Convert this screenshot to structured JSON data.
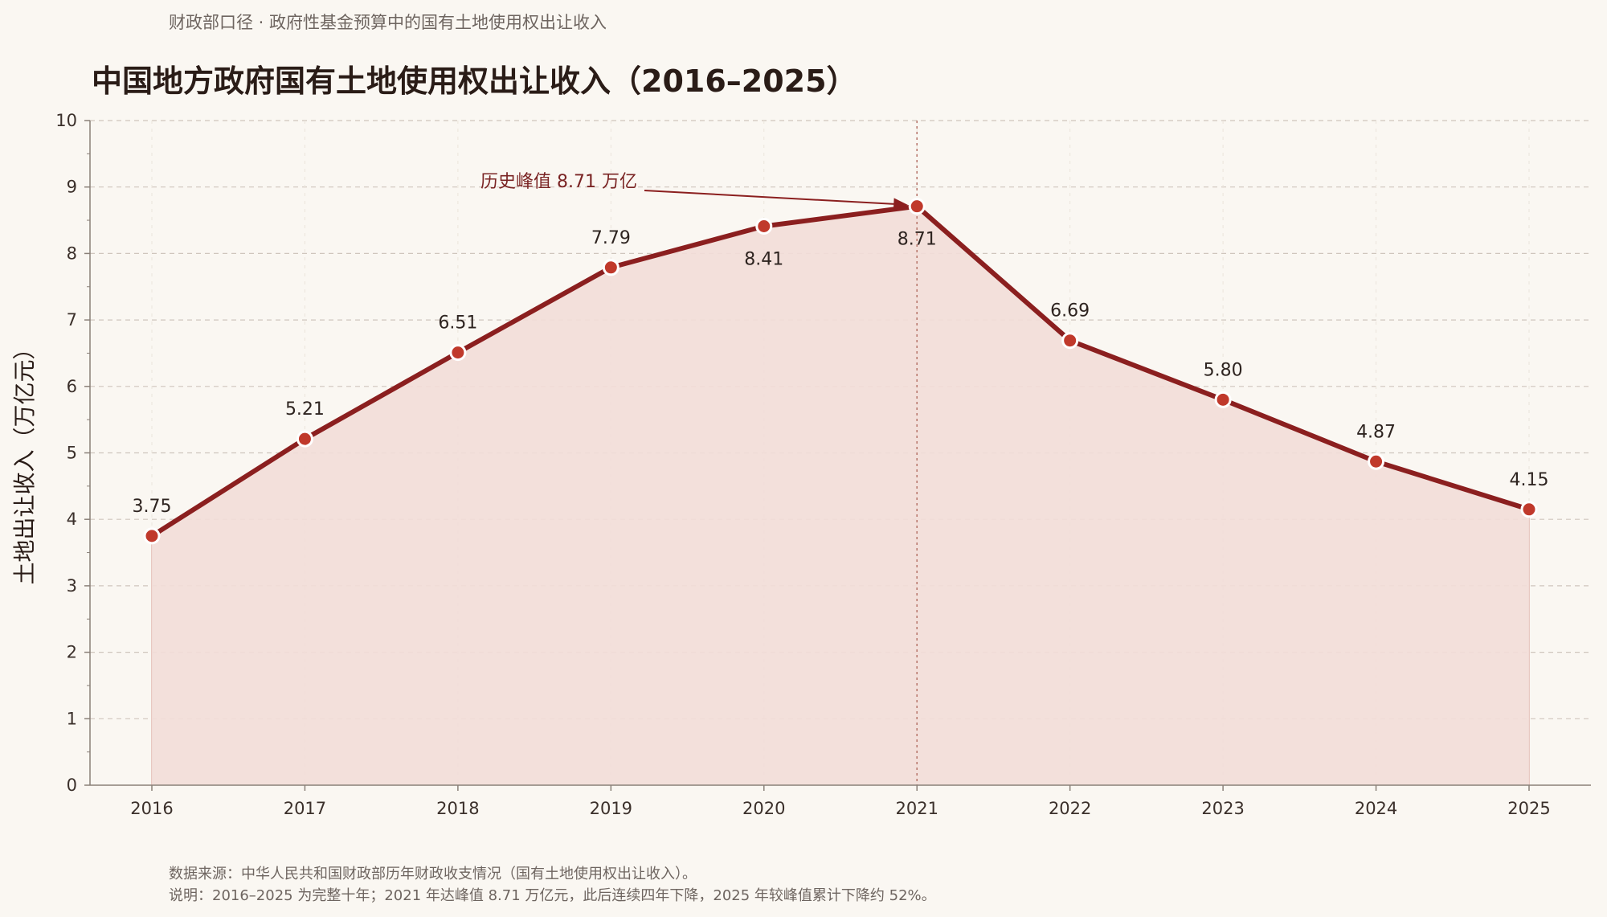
{
  "subtitle": "财政部口径 · 政府性基金预算中的国有土地使用权出让收入",
  "footnotes": [
    "数据来源：中华人民共和国财政部历年财政收支情况（国有土地使用权出让收入）。",
    "说明：2016–2025 为完整十年；2021 年达峰值 8.71 万亿元，此后连续四年下降，2025 年较峰值累计下降约 52%。"
  ],
  "colors": {
    "line": "#8b1f1f",
    "marker": "#c0392b",
    "fill": "#f2ddd8",
    "grid": "#cfc6bd",
    "axis": "#8a8078"
  },
  "chart_data": {
    "type": "area",
    "title": "中国地方政府国有土地使用权出让收入（2016–2025）",
    "xlabel": "",
    "ylabel": "土地出让收入（万亿元）",
    "categories": [
      "2016",
      "2017",
      "2018",
      "2019",
      "2020",
      "2021",
      "2022",
      "2023",
      "2024",
      "2025"
    ],
    "series": [
      {
        "values": [
          3.75,
          5.21,
          6.51,
          7.79,
          8.41,
          8.71,
          6.69,
          5.8,
          4.87,
          4.15
        ]
      }
    ],
    "data_labels": [
      "3.75",
      "5.21",
      "6.51",
      "7.79",
      "8.41",
      "8.71",
      "6.69",
      "5.80",
      "4.87",
      "4.15"
    ],
    "ylim": [
      0,
      10
    ],
    "yticks": [
      0,
      1,
      2,
      3,
      4,
      5,
      6,
      7,
      8,
      9,
      10
    ],
    "grid": true,
    "annotation": {
      "text": "历史峰值 8.71 万亿",
      "x": "2021",
      "y": 8.71
    }
  }
}
